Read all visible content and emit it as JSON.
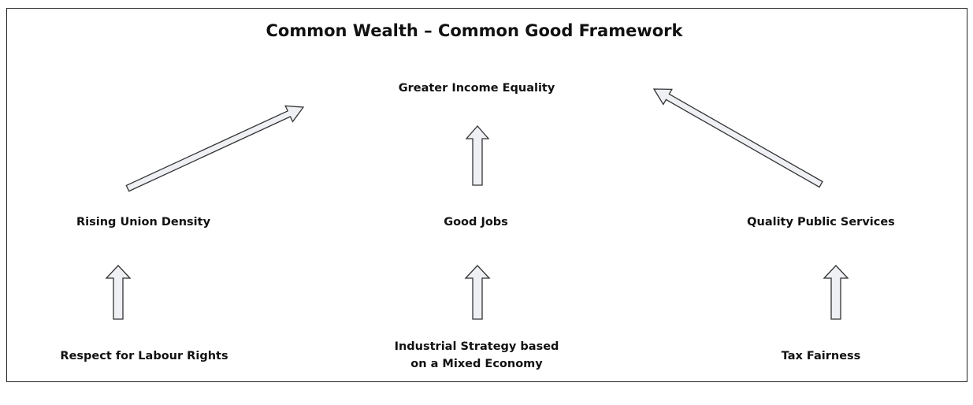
{
  "title": "Common Wealth – Common Good Framework",
  "nodes": [
    {
      "lines": [
        "Greater Income Equality"
      ]
    },
    {
      "lines": [
        "Rising Union Density"
      ]
    },
    {
      "lines": [
        "Good Jobs"
      ]
    },
    {
      "lines": [
        "Quality Public Services"
      ]
    },
    {
      "lines": [
        "Respect for Labour Rights"
      ]
    },
    {
      "lines": [
        "Industrial Strategy based",
        "on a Mixed Economy"
      ]
    },
    {
      "lines": [
        "Tax Fairness"
      ]
    }
  ]
}
